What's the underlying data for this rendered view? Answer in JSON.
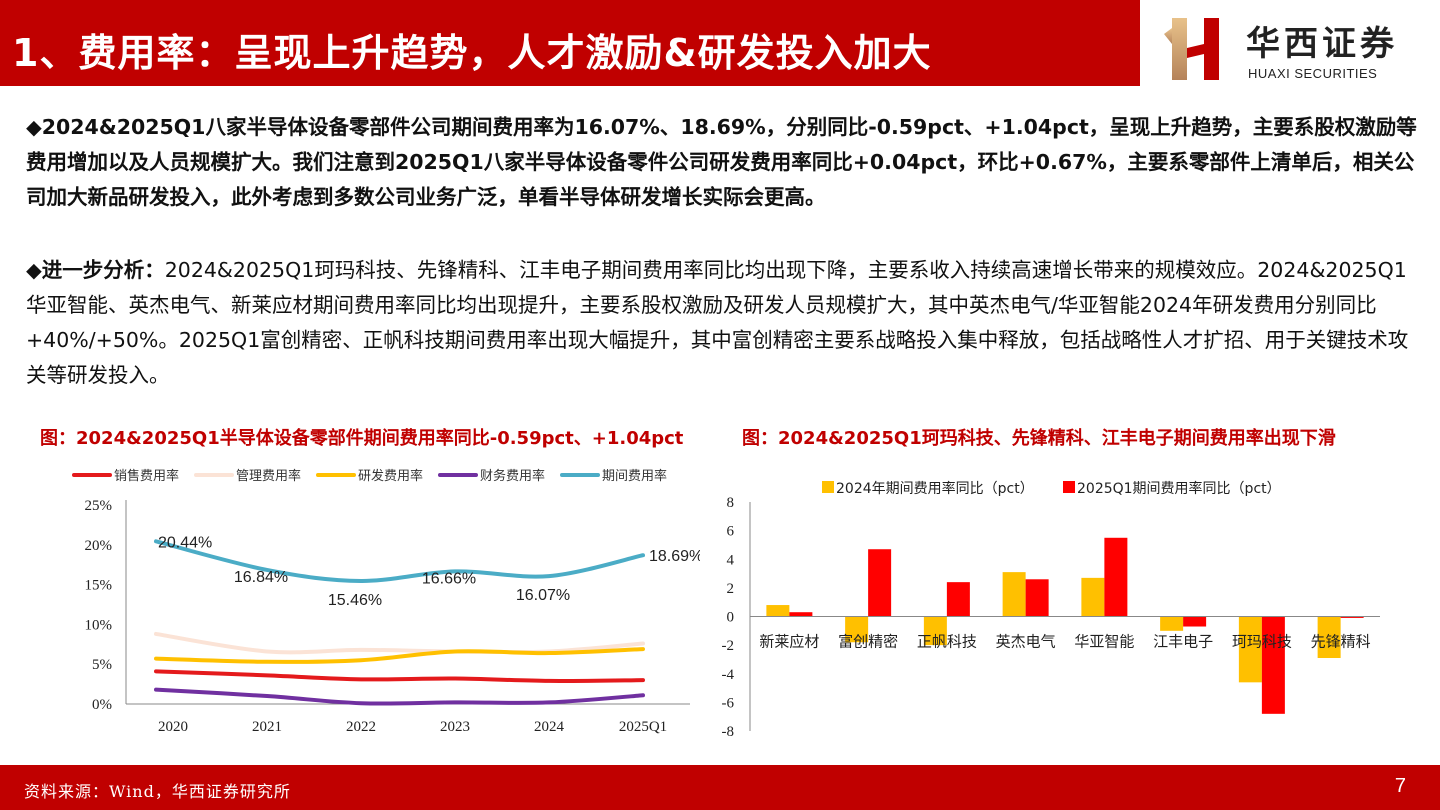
{
  "header": {
    "title": "1、费用率：呈现上升趋势，人才激励&研发投入加大",
    "logo_cn": "华西证券",
    "logo_en": "HUAXI SECURITIES"
  },
  "paragraphs": {
    "p1": "◆2024&2025Q1八家半导体设备零部件公司期间费用率为16.07%、18.69%，分别同比-0.59pct、+1.04pct，呈现上升趋势，主要系股权激励等费用增加以及人员规模扩大。我们注意到2025Q1八家半导体设备零件公司研发费用率同比+0.04pct，环比+0.67%，主要系零部件上清单后，相关公司加大新品研发投入，此外考虑到多数公司业务广泛，单看半导体研发增长实际会更高。",
    "p2_lead": "◆进一步分析：",
    "p2_body": "2024&2025Q1珂玛科技、先锋精科、江丰电子期间费用率同比均出现下降，主要系收入持续高速增长带来的规模效应。2024&2025Q1华亚智能、英杰电气、新莱应材期间费用率同比均出现提升，主要系股权激励及研发人员规模扩大，其中英杰电气/华亚智能2024年研发费用分别同比+40%/+50%。2025Q1富创精密、正帆科技期间费用率出现大幅提升，其中富创精密主要系战略投入集中释放，包括战略性人才扩招、用于关键技术攻关等研发投入。"
  },
  "figures": {
    "left_caption": "图：2024&2025Q1半导体设备零部件期间费用率同比-0.59pct、+1.04pct",
    "right_caption": "图：2024&2025Q1珂玛科技、先锋精科、江丰电子期间费用率出现下滑"
  },
  "chart_data": [
    {
      "type": "line",
      "categories": [
        "2020",
        "2021",
        "2022",
        "2023",
        "2024",
        "2025Q1"
      ],
      "ylim": [
        0,
        25
      ],
      "yticks": [
        "0%",
        "5%",
        "10%",
        "15%",
        "20%",
        "25%"
      ],
      "legend_position": "top",
      "grid": false,
      "series": [
        {
          "name": "销售费用率",
          "color": "#e41a1c",
          "values": [
            4.1,
            3.6,
            3.1,
            3.2,
            2.9,
            3.0
          ]
        },
        {
          "name": "管理费用率",
          "color": "#fbe3d6",
          "values": [
            8.8,
            6.6,
            6.8,
            6.6,
            6.6,
            7.6
          ]
        },
        {
          "name": "研发费用率",
          "color": "#ffc000",
          "values": [
            5.7,
            5.3,
            5.5,
            6.6,
            6.4,
            6.9
          ]
        },
        {
          "name": "财务费用率",
          "color": "#7030a0",
          "values": [
            1.8,
            1.0,
            0.1,
            0.2,
            0.2,
            1.1
          ]
        },
        {
          "name": "期间费用率",
          "color": "#4bacc6",
          "values": [
            20.44,
            16.84,
            15.46,
            16.66,
            16.07,
            18.69
          ],
          "labels": [
            "20.44%",
            "16.84%",
            "15.46%",
            "16.66%",
            "16.07%",
            "18.69%"
          ]
        }
      ]
    },
    {
      "type": "bar",
      "categories": [
        "新莱应材",
        "富创精密",
        "正帆科技",
        "英杰电气",
        "华亚智能",
        "江丰电子",
        "珂玛科技",
        "先锋精科"
      ],
      "ylim": [
        -8,
        8
      ],
      "yticks": [
        "-8",
        "-6",
        "-4",
        "-2",
        "0",
        "2",
        "4",
        "6",
        "8"
      ],
      "legend_position": "top",
      "series": [
        {
          "name": "2024年期间费用率同比（pct）",
          "color": "#ffc000",
          "values": [
            0.8,
            -1.8,
            -2.0,
            3.1,
            2.7,
            -1.0,
            -4.6,
            -2.9
          ]
        },
        {
          "name": "2025Q1期间费用率同比（pct）",
          "color": "#ff0000",
          "values": [
            0.3,
            4.7,
            2.4,
            2.6,
            5.5,
            -0.7,
            -6.8,
            -0.1
          ]
        }
      ]
    }
  ],
  "footer": {
    "source": "资料来源：Wind，华西证券研究所",
    "page": "7"
  }
}
